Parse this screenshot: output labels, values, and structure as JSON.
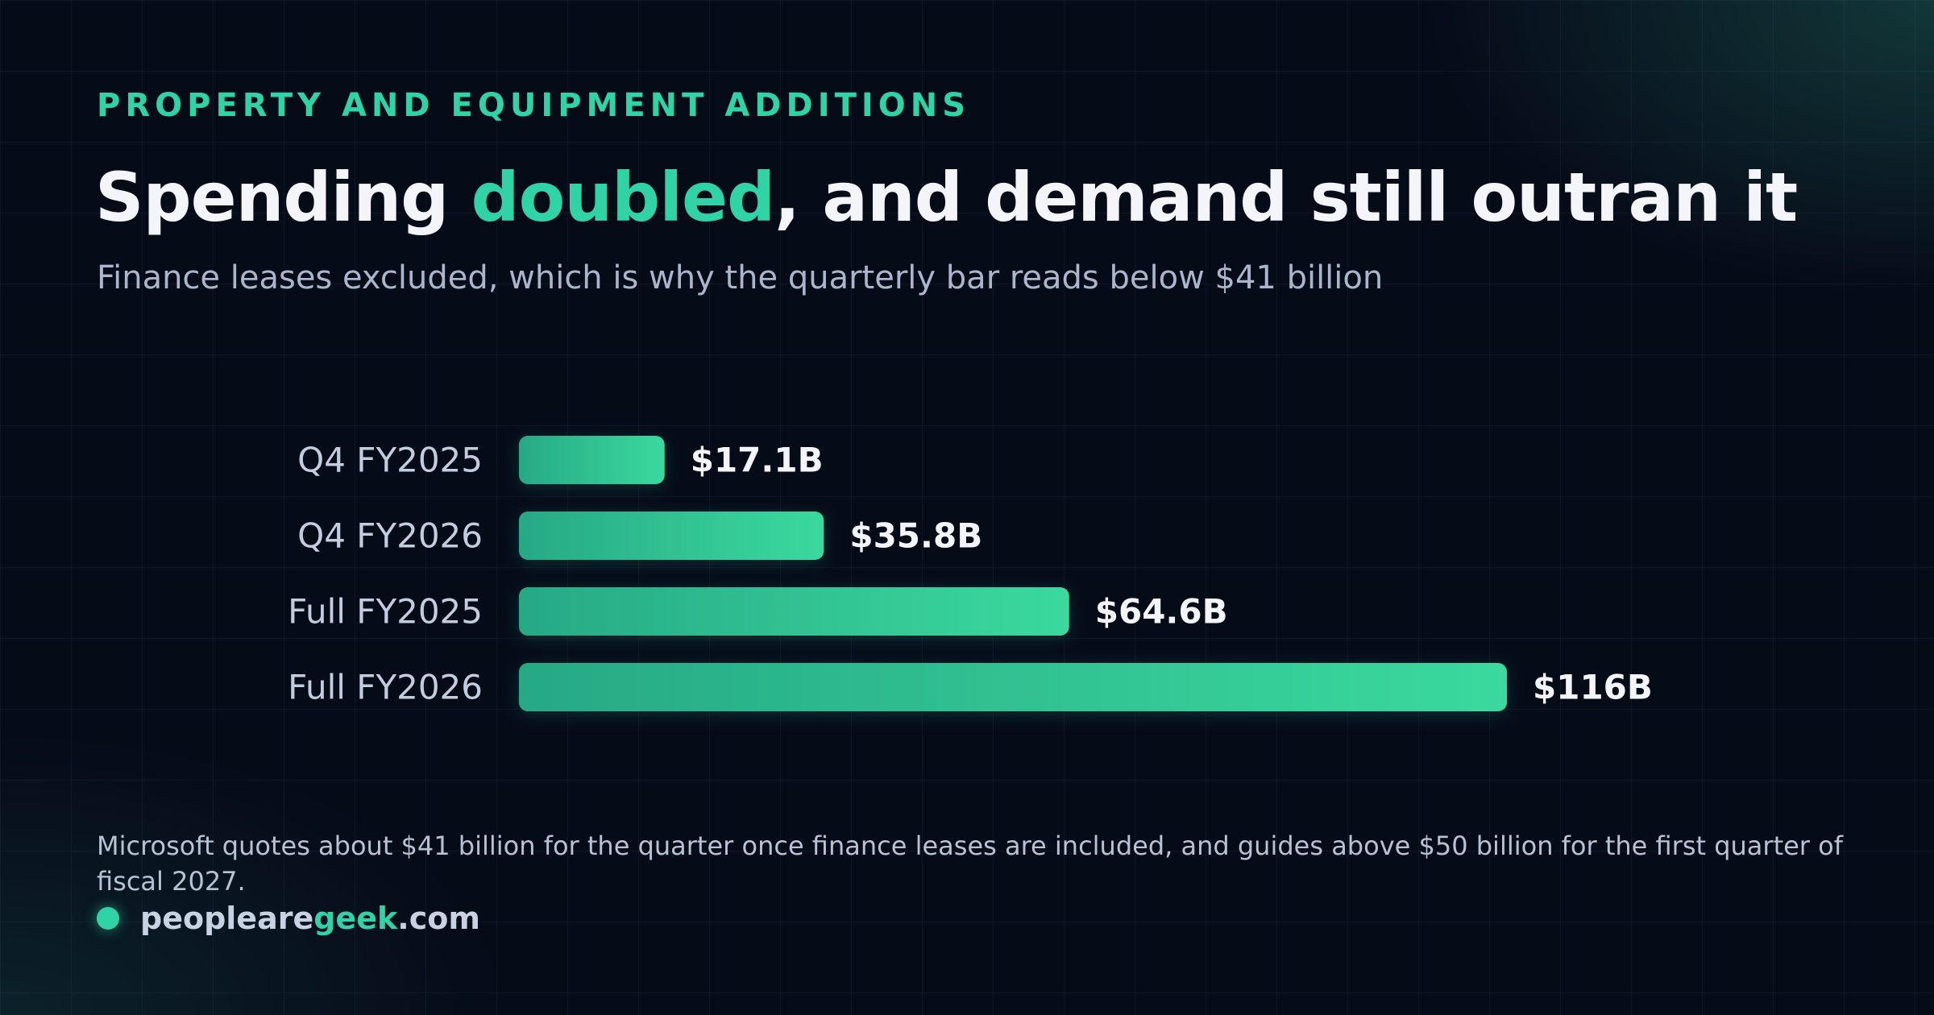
{
  "eyebrow": "PROPERTY AND EQUIPMENT ADDITIONS",
  "headline": {
    "before": "Spending ",
    "accent": "doubled",
    "after": ", and demand still outran it"
  },
  "subtitle": "Finance leases excluded, which is why the quarterly bar reads below $41 billion",
  "footnote": "Microsoft quotes about $41 billion for the quarter once finance leases are included, and guides above $50 billion for the first quarter of fiscal 2027.",
  "brand": {
    "before": "peopleare",
    "accent": "geek",
    "after": ".com"
  },
  "colors": {
    "accent": "#2fd3a6",
    "bar_start": "#27a985",
    "bar_end": "#3ad99e",
    "background": "#060b18"
  },
  "chart_data": {
    "type": "bar",
    "orientation": "horizontal",
    "unit": "billion USD",
    "categories": [
      "Q4 FY2025",
      "Q4 FY2026",
      "Full FY2025",
      "Full FY2026"
    ],
    "values": [
      17.1,
      35.8,
      64.6,
      116
    ],
    "value_labels": [
      "$17.1B",
      "$35.8B",
      "$64.6B",
      "$116B"
    ],
    "xlim": [
      0,
      116
    ],
    "grid": false,
    "legend": "none"
  }
}
